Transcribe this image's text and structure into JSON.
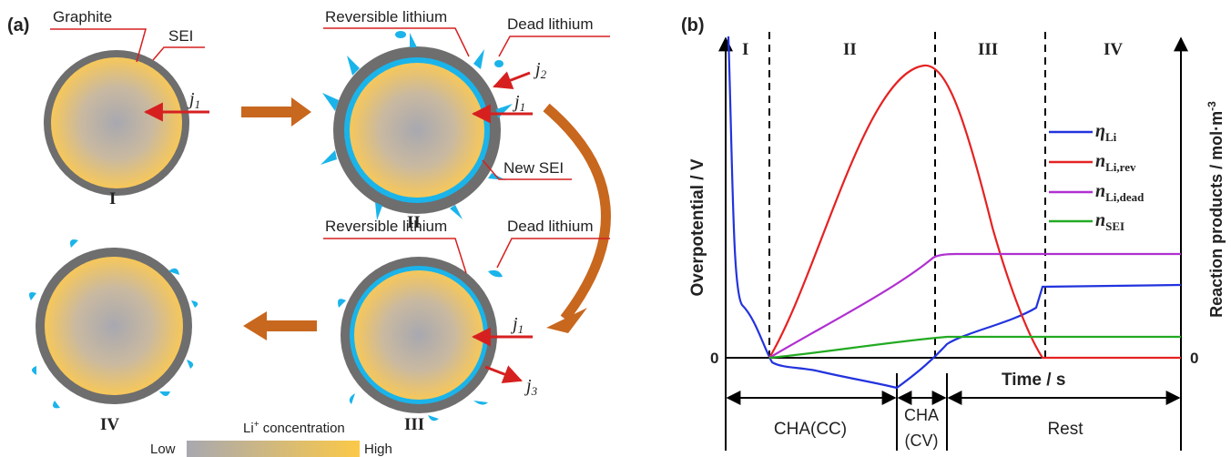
{
  "panel_a": {
    "label": "(a)",
    "annotations": [
      "Graphite",
      "SEI",
      "Reversible lithium",
      "Dead lithium",
      "New SEI",
      "Reversible lithium",
      "Dead lithium"
    ],
    "stages": [
      "I",
      "II",
      "III",
      "IV"
    ],
    "currents": [
      {
        "symbol": "j",
        "subscript": "1"
      },
      {
        "symbol": "j",
        "subscript": "2"
      },
      {
        "symbol": "j",
        "subscript": "1"
      },
      {
        "symbol": "j",
        "subscript": "1"
      },
      {
        "symbol": "j",
        "subscript": "3"
      }
    ],
    "colorbar": {
      "title": "Li",
      "title_sup": "+",
      "title_rest": " concentration",
      "low": "Low",
      "high": "High"
    }
  },
  "panel_b": {
    "label": "(b)",
    "phases": [
      "I",
      "II",
      "III",
      "IV"
    ],
    "y_label": "Overpotential / V",
    "y2_label": "Reaction products / mol·m",
    "y2_label_sup": "-3",
    "x_label": "Time / s",
    "zero_left": "0",
    "zero_right": "0",
    "steps": [
      "CHA(CC)",
      "CHA",
      "(CV)",
      "Rest"
    ],
    "legend": [
      {
        "symbol": "η",
        "subscript": "Li"
      },
      {
        "symbol": "n",
        "subscript": "Li,rev"
      },
      {
        "symbol": "n",
        "subscript": "Li,dead"
      },
      {
        "symbol": "n",
        "subscript": "SEI"
      }
    ]
  }
}
